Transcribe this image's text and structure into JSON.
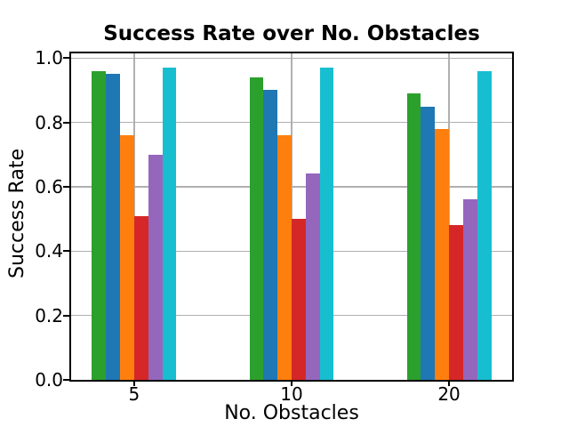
{
  "figure": {
    "background_color": "#ffffff"
  },
  "chart_data": {
    "type": "bar",
    "title": "Success Rate over No. Obstacles",
    "xlabel": "No. Obstacles",
    "ylabel": "Success Rate",
    "categories": [
      "5",
      "10",
      "20"
    ],
    "series": [
      {
        "name": "green",
        "color": "#2ca02c",
        "values": [
          0.96,
          0.94,
          0.89
        ]
      },
      {
        "name": "blue",
        "color": "#1f77b4",
        "values": [
          0.95,
          0.9,
          0.85
        ]
      },
      {
        "name": "orange",
        "color": "#ff7f0e",
        "values": [
          0.76,
          0.76,
          0.78
        ]
      },
      {
        "name": "red",
        "color": "#d62728",
        "values": [
          0.51,
          0.5,
          0.48
        ]
      },
      {
        "name": "purple",
        "color": "#9467bd",
        "values": [
          0.7,
          0.64,
          0.56
        ]
      },
      {
        "name": "cyan",
        "color": "#17becf",
        "values": [
          0.97,
          0.97,
          0.96
        ]
      }
    ],
    "yticks": [
      "0.0",
      "0.2",
      "0.4",
      "0.6",
      "0.8",
      "1.0"
    ],
    "ylim": [
      0.0,
      1.015
    ],
    "grid": true,
    "grid_color": "#b0b0b0",
    "legend": "none"
  }
}
